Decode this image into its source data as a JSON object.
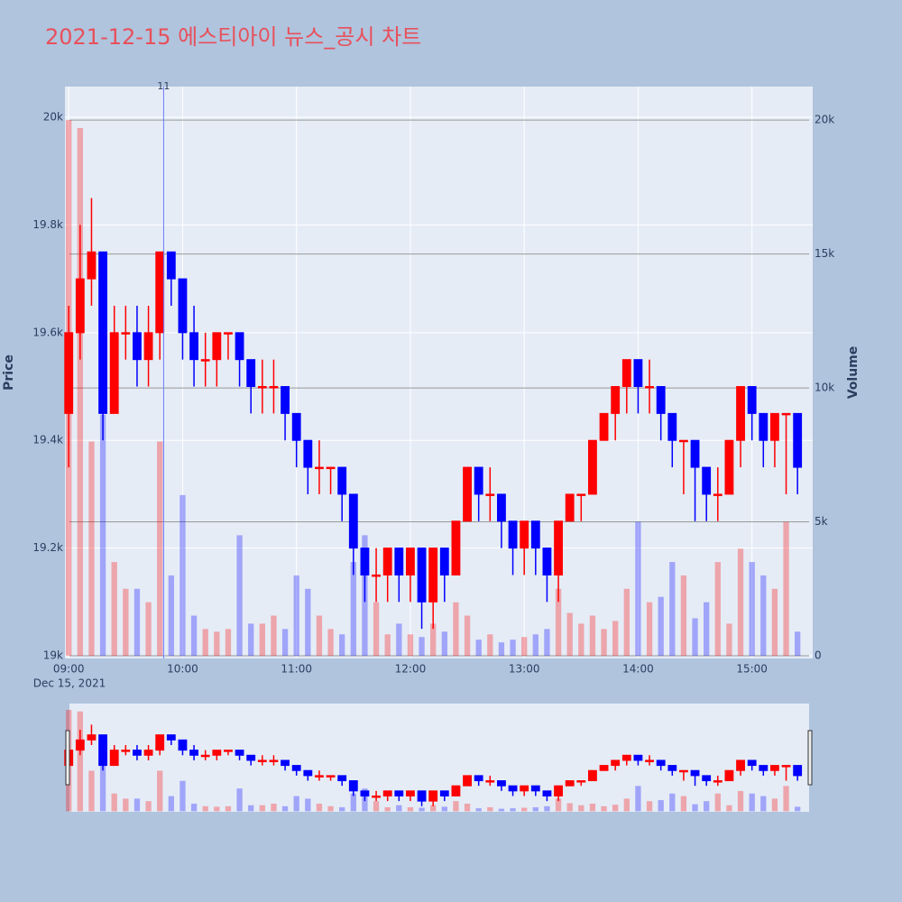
{
  "chart_data": {
    "type": "candlestick",
    "title": "2021-12-15 에스티아이 뉴스_공시 차트",
    "y_label": "Price",
    "y2_label": "Volume",
    "x_date_label": "Dec 15, 2021",
    "increasing_color": "#ff0000",
    "decreasing_color": "#0000ff",
    "x": [
      "2021-12-15 09:00",
      "2021-12-15 09:06",
      "2021-12-15 09:12",
      "2021-12-15 09:18",
      "2021-12-15 09:24",
      "2021-12-15 09:30",
      "2021-12-15 09:36",
      "2021-12-15 09:42",
      "2021-12-15 09:48",
      "2021-12-15 09:54",
      "2021-12-15 10:00",
      "2021-12-15 10:06",
      "2021-12-15 10:12",
      "2021-12-15 10:18",
      "2021-12-15 10:24",
      "2021-12-15 10:30",
      "2021-12-15 10:36",
      "2021-12-15 10:42",
      "2021-12-15 10:48",
      "2021-12-15 10:54",
      "2021-12-15 11:00",
      "2021-12-15 11:06",
      "2021-12-15 11:12",
      "2021-12-15 11:18",
      "2021-12-15 11:24",
      "2021-12-15 11:30",
      "2021-12-15 11:36",
      "2021-12-15 11:42",
      "2021-12-15 11:48",
      "2021-12-15 11:54",
      "2021-12-15 12:00",
      "2021-12-15 12:06",
      "2021-12-15 12:12",
      "2021-12-15 12:18",
      "2021-12-15 12:24",
      "2021-12-15 12:30",
      "2021-12-15 12:36",
      "2021-12-15 12:42",
      "2021-12-15 12:48",
      "2021-12-15 12:54",
      "2021-12-15 13:00",
      "2021-12-15 13:06",
      "2021-12-15 13:12",
      "2021-12-15 13:18",
      "2021-12-15 13:24",
      "2021-12-15 13:30",
      "2021-12-15 13:36",
      "2021-12-15 13:42",
      "2021-12-15 13:48",
      "2021-12-15 13:54",
      "2021-12-15 14:00",
      "2021-12-15 14:06",
      "2021-12-15 14:12",
      "2021-12-15 14:18",
      "2021-12-15 14:24",
      "2021-12-15 14:30",
      "2021-12-15 14:36",
      "2021-12-15 14:42",
      "2021-12-15 14:48",
      "2021-12-15 14:54",
      "2021-12-15 15:00",
      "2021-12-15 15:06",
      "2021-12-15 15:12",
      "2021-12-15 15:18",
      "2021-12-15 15:24"
    ],
    "open": [
      19450,
      19600,
      19700,
      19750,
      19450,
      19600,
      19600,
      19550,
      19600,
      19750,
      19700,
      19600,
      19550,
      19550,
      19600,
      19600,
      19550,
      19500,
      19500,
      19500,
      19450,
      19400,
      19350,
      19350,
      19350,
      19300,
      19200,
      19150,
      19150,
      19200,
      19150,
      19200,
      19100,
      19200,
      19150,
      19250,
      19350,
      19300,
      19300,
      19250,
      19200,
      19250,
      19200,
      19150,
      19250,
      19300,
      19300,
      19400,
      19450,
      19500,
      19550,
      19500,
      19500,
      19450,
      19400,
      19400,
      19350,
      19300,
      19300,
      19400,
      19500,
      19450,
      19400,
      19450,
      19450
    ],
    "high": [
      19650,
      19800,
      19850,
      19750,
      19650,
      19650,
      19650,
      19650,
      19750,
      19750,
      19700,
      19650,
      19600,
      19600,
      19600,
      19600,
      19550,
      19550,
      19550,
      19500,
      19450,
      19400,
      19400,
      19350,
      19350,
      19300,
      19200,
      19200,
      19200,
      19200,
      19200,
      19200,
      19200,
      19200,
      19250,
      19350,
      19350,
      19350,
      19300,
      19250,
      19250,
      19250,
      19200,
      19250,
      19300,
      19300,
      19400,
      19450,
      19500,
      19550,
      19550,
      19550,
      19500,
      19450,
      19400,
      19400,
      19350,
      19350,
      19400,
      19500,
      19500,
      19450,
      19450,
      19450,
      19450
    ],
    "low": [
      19350,
      19550,
      19650,
      19400,
      19450,
      19550,
      19500,
      19500,
      19550,
      19650,
      19550,
      19500,
      19500,
      19500,
      19550,
      19500,
      19450,
      19450,
      19450,
      19400,
      19350,
      19300,
      19300,
      19300,
      19250,
      19150,
      19100,
      19100,
      19100,
      19100,
      19100,
      19050,
      19050,
      19100,
      19150,
      19250,
      19250,
      19250,
      19200,
      19150,
      19150,
      19150,
      19100,
      19100,
      19250,
      19250,
      19300,
      19400,
      19400,
      19450,
      19450,
      19450,
      19400,
      19350,
      19300,
      19250,
      19250,
      19250,
      19300,
      19350,
      19400,
      19350,
      19350,
      19300,
      19300
    ],
    "close": [
      19600,
      19700,
      19750,
      19450,
      19600,
      19600,
      19550,
      19600,
      19750,
      19700,
      19600,
      19550,
      19550,
      19600,
      19600,
      19550,
      19500,
      19500,
      19500,
      19450,
      19400,
      19350,
      19350,
      19350,
      19300,
      19200,
      19150,
      19150,
      19200,
      19150,
      19200,
      19100,
      19200,
      19150,
      19250,
      19350,
      19300,
      19300,
      19250,
      19200,
      19250,
      19200,
      19150,
      19250,
      19300,
      19300,
      19400,
      19450,
      19500,
      19550,
      19500,
      19500,
      19450,
      19400,
      19400,
      19350,
      19300,
      19300,
      19400,
      19500,
      19450,
      19400,
      19450,
      19450,
      19350
    ],
    "volume": [
      20000,
      19700,
      8000,
      9000,
      3500,
      2500,
      2500,
      2000,
      8000,
      3000,
      6000,
      1500,
      1000,
      900,
      1000,
      4500,
      1200,
      1200,
      1500,
      1000,
      3000,
      2500,
      1500,
      1000,
      800,
      3500,
      4500,
      2000,
      800,
      1200,
      800,
      700,
      1200,
      900,
      2000,
      1500,
      600,
      800,
      500,
      600,
      700,
      800,
      1000,
      2500,
      1600,
      1200,
      1500,
      1000,
      1300,
      2500,
      5000,
      2000,
      2200,
      3500,
      3000,
      1400,
      2000,
      3500,
      1200,
      4000,
      3500,
      3000,
      2500,
      5000,
      900
    ],
    "xlim": [
      "2021-12-15 08:58",
      "2021-12-15 15:32"
    ],
    "xticks": [
      {
        "value": "2021-12-15 09:00",
        "label": "09:00"
      },
      {
        "value": "2021-12-15 10:00",
        "label": "10:00"
      },
      {
        "value": "2021-12-15 11:00",
        "label": "11:00"
      },
      {
        "value": "2021-12-15 12:00",
        "label": "12:00"
      },
      {
        "value": "2021-12-15 13:00",
        "label": "13:00"
      },
      {
        "value": "2021-12-15 14:00",
        "label": "14:00"
      },
      {
        "value": "2021-12-15 15:00",
        "label": "15:00"
      }
    ],
    "ylim": [
      18995,
      20057
    ],
    "yticks": [
      {
        "value": 19000,
        "label": "19k"
      },
      {
        "value": 19200,
        "label": "19.2k"
      },
      {
        "value": 19400,
        "label": "19.4k"
      },
      {
        "value": 19600,
        "label": "19.6k"
      },
      {
        "value": 19800,
        "label": "19.8k"
      },
      {
        "value": 20000,
        "label": "20k"
      }
    ],
    "y2lim": [
      -100,
      21250
    ],
    "y2ticks": [
      0,
      {
        "value": 5000,
        "label": "5k"
      },
      {
        "value": 10000,
        "label": "10k"
      },
      {
        "value": 15000,
        "label": "15k"
      },
      {
        "value": 20000,
        "label": "20k"
      }
    ],
    "annotations": [
      {
        "x": "2021-12-15 09:50",
        "text": "11"
      }
    ],
    "grid": true,
    "rangeslider": true
  }
}
